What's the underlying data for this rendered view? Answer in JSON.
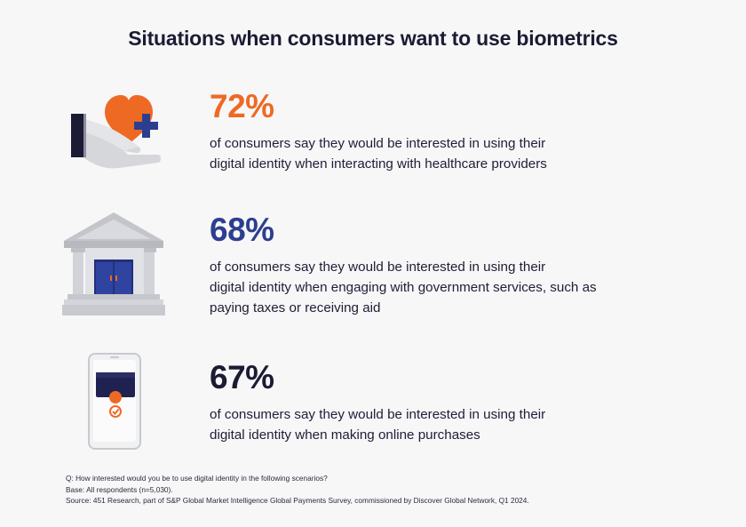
{
  "title": "Situations when consumers want to use biometrics",
  "colors": {
    "orange": "#ee6a24",
    "blue": "#2c3f8f",
    "navy": "#1b1b33",
    "gray": "#cfd0d4"
  },
  "stats": [
    {
      "icon": "heart-hand-icon",
      "percent": "72%",
      "line1": "of consumers say they would be interested in using their",
      "line2": "digital identity when interacting with healthcare providers",
      "line3": ""
    },
    {
      "icon": "bank-building-icon",
      "percent": "68%",
      "line1": "of consumers say they would be interested in using their",
      "line2": "digital identity when engaging with government services, such as",
      "line3": "paying taxes or receiving aid"
    },
    {
      "icon": "smartphone-check-icon",
      "percent": "67%",
      "line1": "of consumers say they would be interested in using their",
      "line2": "digital identity when making online purchases",
      "line3": ""
    }
  ],
  "footnote": {
    "question": "Q: How interested would you be to use digital identity in the following scenarios?",
    "base": "Base: All respondents (n=5,030).",
    "source": "Source: 451 Research, part of S&P Global Market Intelligence Global Payments Survey, commissioned by Discover Global Network, Q1 2024."
  }
}
